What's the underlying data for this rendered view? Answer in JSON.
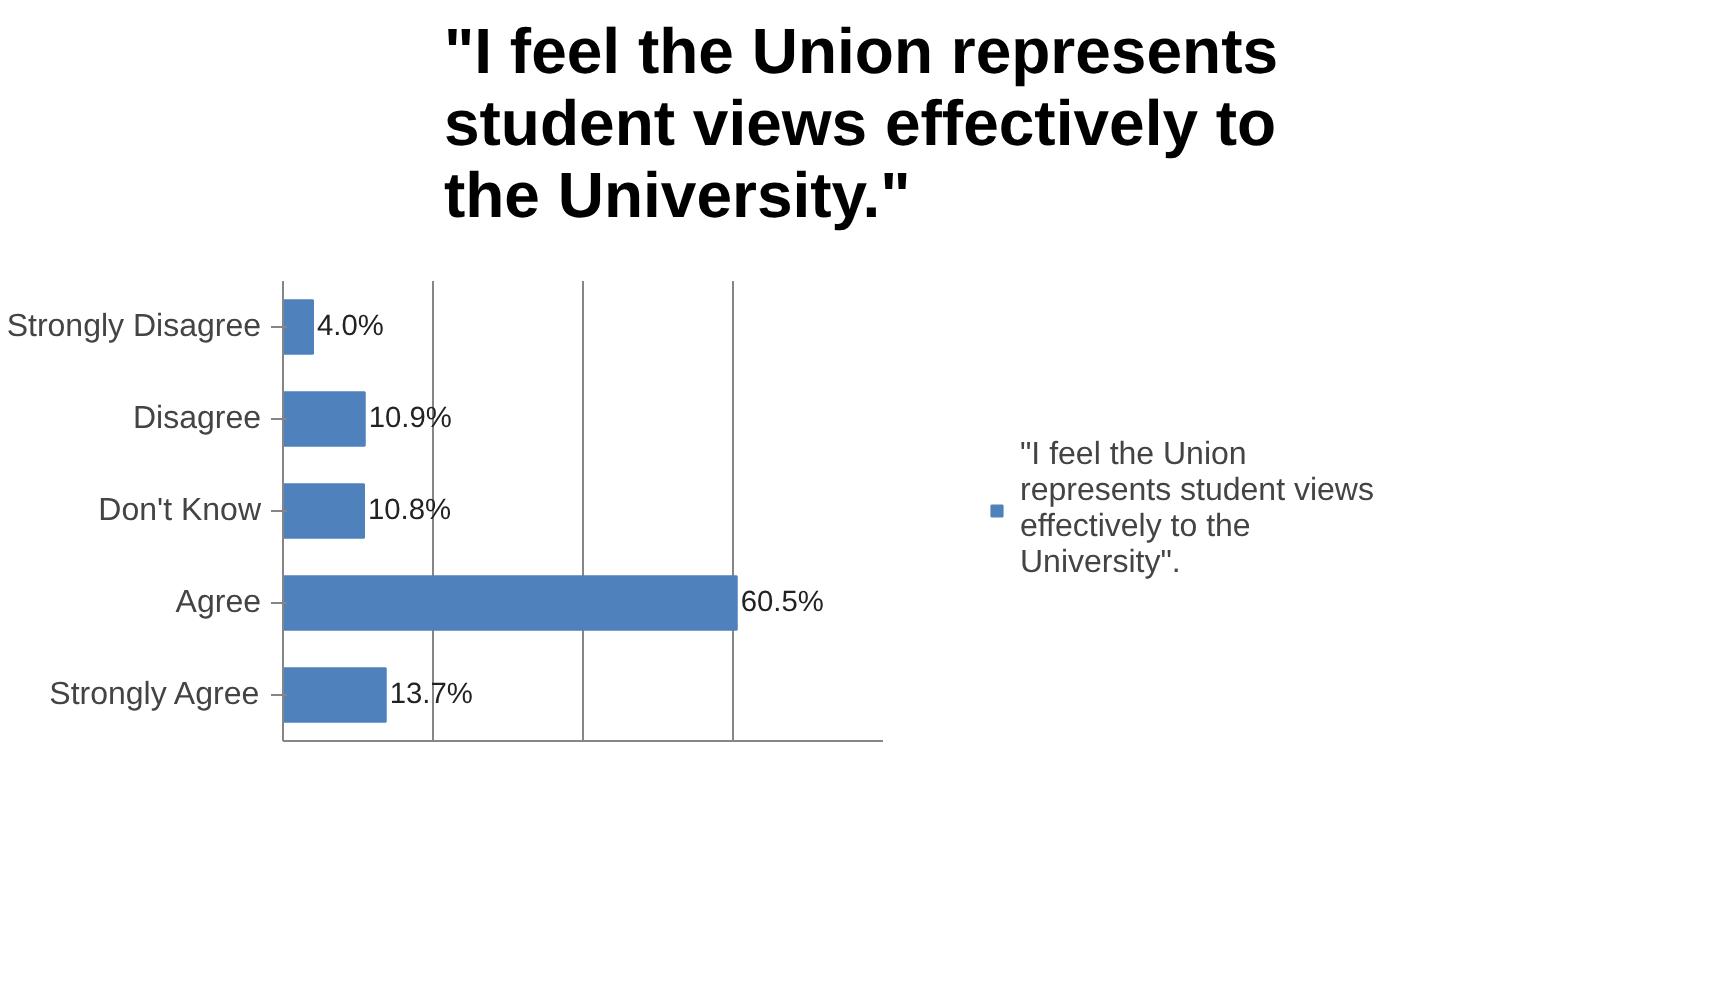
{
  "chart_data": {
    "type": "bar",
    "orientation": "horizontal",
    "title": "\"I feel the Union represents student views effectively to the University.\"",
    "categories": [
      "Strongly Disagree",
      "Disagree",
      "Don't Know",
      "Agree",
      "Strongly Agree"
    ],
    "series": [
      {
        "name": "\"I feel the Union represents student views effectively to the University\".",
        "color": "#4f81bd",
        "values": [
          4.0,
          10.9,
          10.8,
          60.5,
          13.7
        ],
        "value_labels": [
          "4.0%",
          "10.9%",
          "10.8%",
          "60.5%",
          "13.7%"
        ]
      }
    ],
    "xlim": [
      0,
      80
    ],
    "xticks": [
      {
        "value": 0,
        "label": null
      },
      {
        "value": 20,
        "label": null
      },
      {
        "value": 40,
        "label": null
      },
      {
        "value": 60,
        "label": null
      }
    ],
    "grid": "x",
    "legend": "right",
    "tick_labels": "y"
  }
}
